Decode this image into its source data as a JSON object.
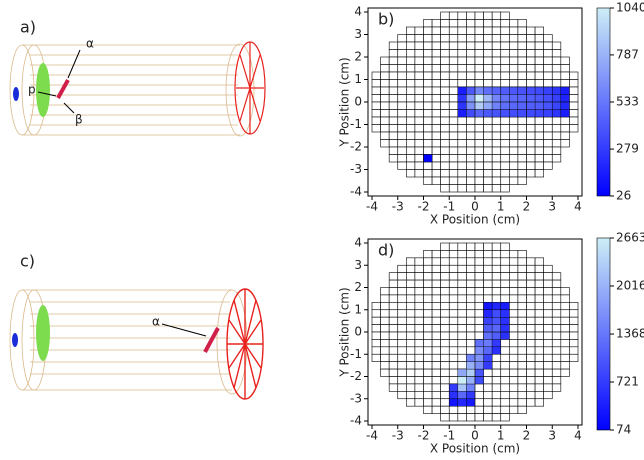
{
  "figure": {
    "panel_a": {
      "label": "a)",
      "annotations": [
        "α",
        "p",
        "β"
      ]
    },
    "panel_c": {
      "label": "c)",
      "annotations": [
        "α"
      ]
    }
  },
  "chart_data": [
    {
      "type": "heatmap",
      "title": "b)",
      "xlabel": "X Position (cm)",
      "ylabel": "Y Position (cm)",
      "xlim": [
        -4,
        4
      ],
      "ylim": [
        -4,
        4
      ],
      "xticks": [
        -4,
        -3,
        -2,
        -1,
        0,
        1,
        2,
        3,
        4
      ],
      "yticks": [
        -4,
        -3,
        -2,
        -1,
        0,
        1,
        2,
        3,
        4
      ],
      "clim": [
        26,
        1040
      ],
      "cticks": [
        26,
        279,
        533,
        787,
        1040
      ],
      "x": [
        -0.5,
        -0.17,
        0.17,
        0.5,
        0.83,
        1.17,
        1.5,
        1.83,
        2.17,
        2.5,
        2.83,
        3.17,
        3.5,
        -0.5,
        -0.17,
        0.17,
        0.5,
        0.83,
        1.17,
        1.5,
        1.83,
        2.17,
        2.5,
        2.83,
        3.17,
        3.5,
        -0.5,
        -0.17,
        0.17,
        0.5,
        0.83,
        1.17,
        1.5,
        1.83,
        2.17,
        2.5,
        2.83,
        3.17,
        3.5,
        -0.5,
        -0.17,
        0.17,
        0.5,
        0.83,
        1.17,
        1.5,
        1.83,
        2.17,
        2.5,
        2.83,
        3.17,
        3.5,
        -1.83
      ],
      "y": [
        0.5,
        0.5,
        0.5,
        0.5,
        0.5,
        0.5,
        0.5,
        0.5,
        0.5,
        0.5,
        0.5,
        0.5,
        0.5,
        0.17,
        0.17,
        0.17,
        0.17,
        0.17,
        0.17,
        0.17,
        0.17,
        0.17,
        0.17,
        0.17,
        0.17,
        0.17,
        -0.17,
        -0.17,
        -0.17,
        -0.17,
        -0.17,
        -0.17,
        -0.17,
        -0.17,
        -0.17,
        -0.17,
        -0.17,
        -0.17,
        -0.17,
        -0.5,
        -0.5,
        -0.5,
        -0.5,
        -0.5,
        -0.5,
        -0.5,
        -0.5,
        -0.5,
        -0.5,
        -0.5,
        -0.5,
        -0.5,
        -2.5
      ],
      "values": [
        150,
        400,
        600,
        500,
        450,
        420,
        400,
        380,
        360,
        340,
        300,
        250,
        150,
        250,
        700,
        1040,
        800,
        600,
        520,
        480,
        460,
        430,
        400,
        360,
        300,
        180,
        250,
        650,
        900,
        750,
        580,
        500,
        470,
        450,
        430,
        420,
        380,
        320,
        200,
        150,
        350,
        450,
        400,
        380,
        370,
        360,
        350,
        340,
        320,
        300,
        250,
        150,
        26
      ]
    },
    {
      "type": "heatmap",
      "title": "d)",
      "xlabel": "X Position (cm)",
      "ylabel": "Y Position (cm)",
      "xlim": [
        -4,
        4
      ],
      "ylim": [
        -4,
        4
      ],
      "xticks": [
        -4,
        -3,
        -2,
        -1,
        0,
        1,
        2,
        3,
        4
      ],
      "yticks": [
        -4,
        -3,
        -2,
        -1,
        0,
        1,
        2,
        3,
        4
      ],
      "clim": [
        74,
        2663
      ],
      "cticks": [
        74,
        721,
        1368,
        2016,
        2663
      ],
      "x": [
        -0.83,
        -0.5,
        -0.17,
        -0.83,
        -0.5,
        -0.17,
        -0.83,
        -0.5,
        -0.17,
        -0.5,
        -0.17,
        0.17,
        -0.5,
        -0.17,
        0.17,
        -0.17,
        0.17,
        0.5,
        -0.17,
        0.17,
        0.5,
        0.17,
        0.5,
        0.83,
        0.17,
        0.5,
        0.83,
        0.5,
        0.83,
        1.17,
        0.5,
        0.83,
        1.17,
        0.5,
        0.83,
        1.17,
        0.5,
        0.83,
        1.17,
        0.5,
        0.83,
        1.17
      ],
      "y": [
        -3.17,
        -3.17,
        -3.17,
        -2.83,
        -2.83,
        -2.83,
        -2.5,
        -2.5,
        -2.5,
        -2.17,
        -2.17,
        -2.17,
        -1.83,
        -1.83,
        -1.83,
        -1.5,
        -1.5,
        -1.5,
        -1.17,
        -1.17,
        -1.17,
        -0.83,
        -0.83,
        -0.83,
        -0.5,
        -0.5,
        -0.5,
        -0.17,
        -0.17,
        -0.17,
        0.17,
        0.17,
        0.17,
        0.5,
        0.5,
        0.5,
        0.83,
        0.83,
        0.83,
        1.17,
        1.17,
        1.17
      ],
      "values": [
        300,
        500,
        350,
        600,
        1200,
        700,
        700,
        2200,
        1500,
        2663,
        2000,
        900,
        1900,
        2300,
        1000,
        2000,
        1600,
        700,
        1500,
        1700,
        800,
        1600,
        1200,
        600,
        1300,
        1400,
        700,
        1300,
        1100,
        600,
        1100,
        1200,
        600,
        800,
        1000,
        600,
        500,
        900,
        600,
        300,
        500,
        400
      ]
    }
  ]
}
